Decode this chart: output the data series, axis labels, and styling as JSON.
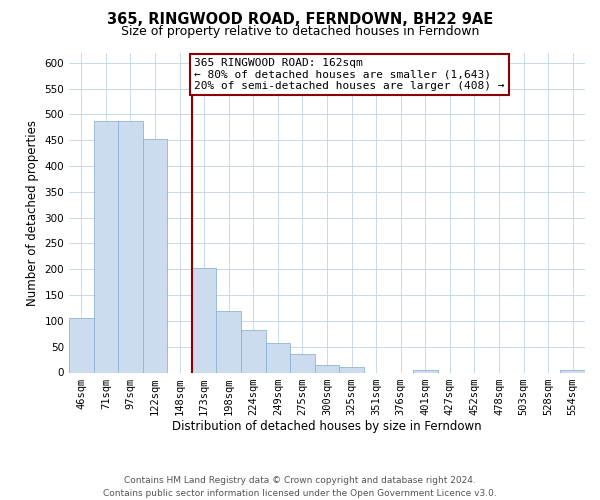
{
  "title": "365, RINGWOOD ROAD, FERNDOWN, BH22 9AE",
  "subtitle": "Size of property relative to detached houses in Ferndown",
  "xlabel": "Distribution of detached houses by size in Ferndown",
  "ylabel": "Number of detached properties",
  "bar_labels": [
    "46sqm",
    "71sqm",
    "97sqm",
    "122sqm",
    "148sqm",
    "173sqm",
    "198sqm",
    "224sqm",
    "249sqm",
    "275sqm",
    "300sqm",
    "325sqm",
    "351sqm",
    "376sqm",
    "401sqm",
    "427sqm",
    "452sqm",
    "478sqm",
    "503sqm",
    "528sqm",
    "554sqm"
  ],
  "bar_values": [
    105,
    487,
    487,
    453,
    0,
    202,
    120,
    82,
    57,
    36,
    15,
    10,
    0,
    0,
    4,
    0,
    0,
    0,
    0,
    0,
    5
  ],
  "bar_color": "#ccdcee",
  "bar_edge_color": "#8fb4d4",
  "vline_x_index": 4.5,
  "vline_color": "#8b0000",
  "annotation_line1": "365 RINGWOOD ROAD: 162sqm",
  "annotation_line2": "← 80% of detached houses are smaller (1,643)",
  "annotation_line3": "20% of semi-detached houses are larger (408) →",
  "annotation_box_color": "#8b0000",
  "ylim": [
    0,
    620
  ],
  "yticks": [
    0,
    50,
    100,
    150,
    200,
    250,
    300,
    350,
    400,
    450,
    500,
    550,
    600
  ],
  "background_color": "#ffffff",
  "grid_color": "#c8d8e8",
  "footer_line1": "Contains HM Land Registry data © Crown copyright and database right 2024.",
  "footer_line2": "Contains public sector information licensed under the Open Government Licence v3.0.",
  "title_fontsize": 10.5,
  "subtitle_fontsize": 9,
  "axis_label_fontsize": 8.5,
  "tick_fontsize": 7.5,
  "annotation_fontsize": 8,
  "footer_fontsize": 6.5
}
